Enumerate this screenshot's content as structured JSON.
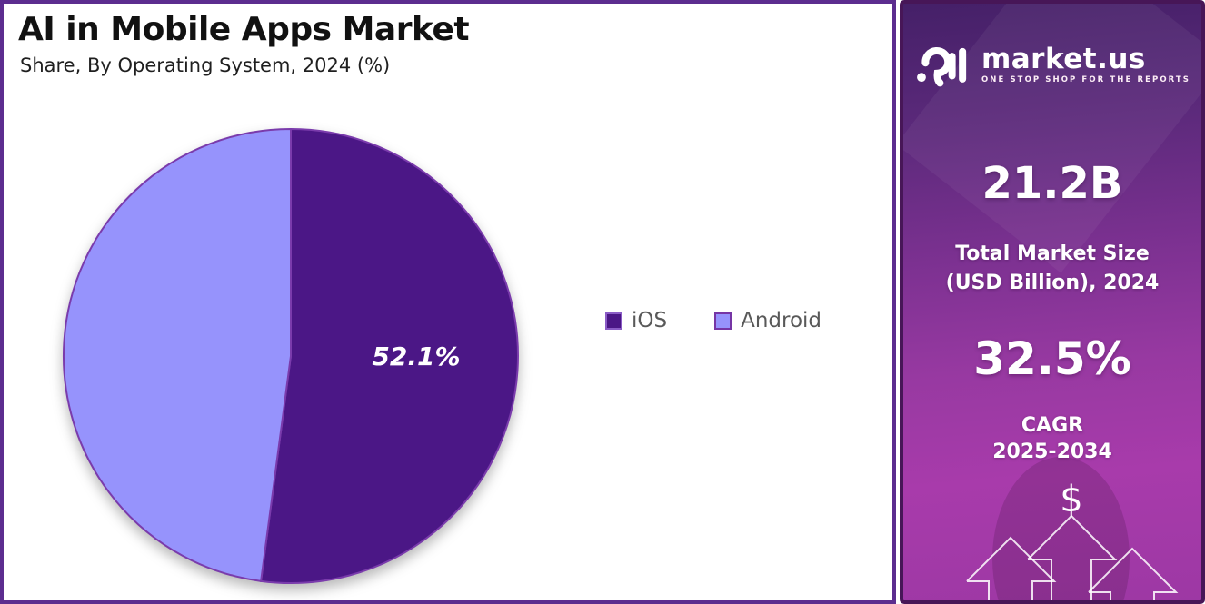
{
  "chart_panel": {
    "title": "AI in Mobile Apps Market",
    "subtitle": "Share, By Operating System, 2024 (%)",
    "slice_label": "52.1%",
    "legend": [
      {
        "label": "iOS",
        "color": "#4B1786",
        "border": "#8B5CC6"
      },
      {
        "label": "Android",
        "color": "#9693FC",
        "border": "#7635A5"
      }
    ]
  },
  "chart_data": {
    "type": "pie",
    "title": "AI in Mobile Apps Market",
    "subtitle": "Share, By Operating System, 2024 (%)",
    "categories": [
      "iOS",
      "Android"
    ],
    "values": [
      52.1,
      47.9
    ],
    "colors": [
      "#4B1786",
      "#9693FC"
    ],
    "slice_stroke": "#7A3BAC",
    "data_labels": [
      "52.1%",
      ""
    ],
    "start_angle_deg": 0,
    "direction": "clockwise",
    "legend_position": "right-middle"
  },
  "sidebar": {
    "logo_text": "market.us",
    "logo_tagline": "ONE STOP SHOP FOR THE REPORTS",
    "market_size_value": "21.2B",
    "market_size_label_line1": "Total Market Size",
    "market_size_label_line2": "(USD Billion), 2024",
    "cagr_value": "32.5%",
    "cagr_label_line1": "CAGR",
    "cagr_label_line2": "2025-2034",
    "dollar_sign": "$",
    "colors": {
      "background_top": "#452068",
      "background_bottom": "#A83BAB",
      "border": "#471657",
      "text": "#FFFFFF"
    }
  }
}
